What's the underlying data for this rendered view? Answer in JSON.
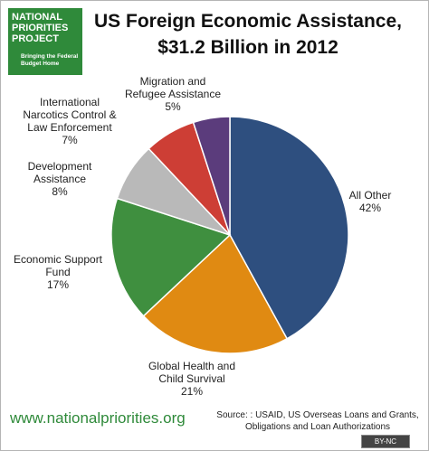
{
  "logo": {
    "name": "NATIONAL PRIORITIES PROJECT",
    "tagline": "Bringing the Federal Budget Home"
  },
  "chart_data": {
    "type": "pie",
    "title": "US Foreign Economic Assistance, $31.2 Billion in 2012",
    "categories": [
      "All Other",
      "Global Health and Child Survival",
      "Economic Support Fund",
      "Development Assistance",
      "International Narcotics Control & Law Enforcement",
      "Migration and Refugee Assistance"
    ],
    "values": [
      42,
      21,
      17,
      8,
      7,
      5
    ],
    "value_labels": [
      "42%",
      "21%",
      "17%",
      "8%",
      "7%",
      "5%"
    ],
    "colors": [
      "#2e4f7f",
      "#e08a12",
      "#3f8f3f",
      "#b9b9b9",
      "#cd3e35",
      "#5b3c7c"
    ]
  },
  "footer": {
    "website": "www.nationalpriorities.org",
    "source": "Source: : USAID, US Overseas Loans and Grants, Obligations and Loan Authorizations",
    "license": "BY-NC"
  }
}
